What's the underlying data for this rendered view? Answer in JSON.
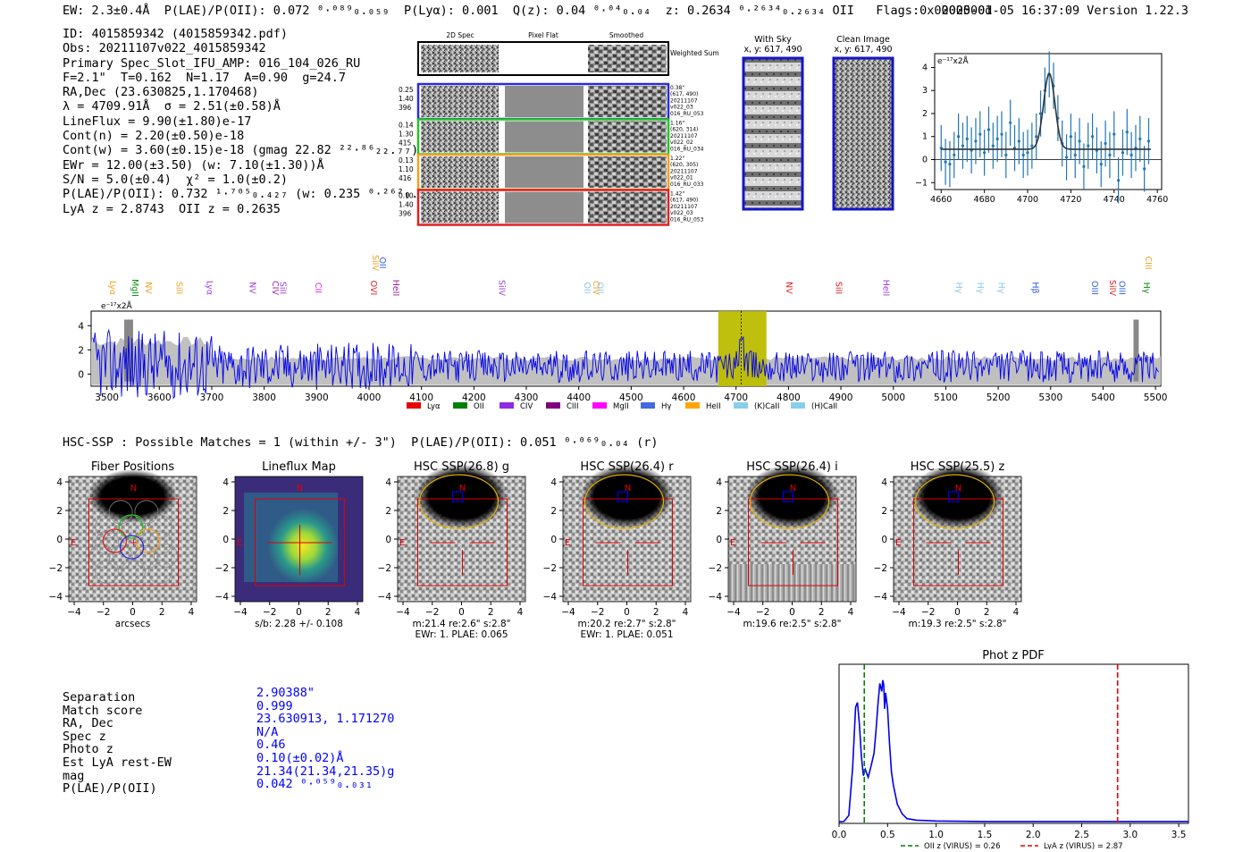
{
  "header": {
    "summary": "EW: 2.3±0.4Å  P(LAE)/P(OII): 0.072 ⁰·⁰⁸⁹₀.₀₅₉  P(Lyα): 0.001  Q(z): 0.04 ⁰·⁰⁴₀.₀₄  z: 0.2634 ⁰·²⁶³⁴₀.₂₆₃₄ OII   Flags:0x0000000d",
    "timestamp_version": "2025-01-05 16:37:09  Version 1.22.3"
  },
  "info": {
    "lines": [
      "ID: 4015859342 (4015859342.pdf)",
      "Obs: 20211107v022_4015859342",
      "Primary Spec_Slot_IFU_AMP: 016_104_026_RU",
      "F=2.1\"  T=0.162  N=1.17  A=0.90  g=24.7",
      "RA,Dec (23.630825,1.170468)",
      "λ = 4709.91Å  σ = 2.51(±0.58)Å",
      "LineFlux = 9.90(±1.80)e-17",
      "Cont(n) = 2.20(±0.50)e-18",
      "Cont(w) = 3.60(±0.15)e-18 (gmag 22.82 ²²·⁸⁶₂₂.₇₇)",
      "EWr = 12.00(±3.50) (w: 7.10(±1.30))Å",
      "S/N = 5.0(±0.4)  χ² = 1.0(±0.2)",
      "P(LAE)/P(OII): 0.732 ¹·⁷⁰⁵₀.₄₂₇ (w: 0.235 ⁰·²⁶²₀.₂₂)",
      "LyA z = 2.8743  OII z = 0.2635"
    ]
  },
  "cutouts": {
    "col_headers": [
      "2D Spec",
      "Pixel Flat",
      "Smoothed"
    ],
    "weighted_sum_label": "Weighted Sum",
    "rows": [
      {
        "left": [
          "0.25",
          "1.40",
          "396"
        ],
        "right": [
          "0.38\"",
          "(617, 490)",
          "20211107",
          "v022_03",
          "016_RU_053"
        ],
        "color": "#2b2bd6"
      },
      {
        "left": [
          "0.14",
          "1.30",
          "415"
        ],
        "right": [
          "1.16\"",
          "(620, 314)",
          "20211107",
          "v022_02",
          "016_RU_034"
        ],
        "color": "#22c322"
      },
      {
        "left": [
          "0.13",
          "1.10",
          "416"
        ],
        "right": [
          "1.22\"",
          "(620, 305)",
          "20211107",
          "v022_01",
          "016_RU_033"
        ],
        "color": "#f0a020"
      },
      {
        "left": [
          "0.10",
          "1.40",
          "396"
        ],
        "right": [
          "1.42\"",
          "(617, 490)",
          "20211107",
          "v022_03",
          "016_RU_053"
        ],
        "color": "#e02020"
      }
    ]
  },
  "sky_panels": {
    "with_sky": {
      "title": "With Sky",
      "coords": "x, y: 617, 490"
    },
    "clean": {
      "title": "Clean Image",
      "coords": "x, y: 617, 490"
    }
  },
  "zoom_plot_chart": {
    "chart_data": {
      "type": "scatter",
      "ylabel_unit": "e⁻¹⁷x2Å",
      "xlim": [
        4657,
        4762
      ],
      "ylim": [
        -1.3,
        4.6
      ],
      "xticks": [
        "4660",
        "4680",
        "4700",
        "4720",
        "4740",
        "4760"
      ],
      "yticks": [
        "−1",
        "0",
        "1",
        "2",
        "3",
        "4"
      ],
      "points": [
        [
          4660,
          0.5
        ],
        [
          4662,
          -0.1
        ],
        [
          4664,
          -0.2
        ],
        [
          4666,
          0.2
        ],
        [
          4668,
          1.0
        ],
        [
          4670,
          0.6
        ],
        [
          4672,
          0.9
        ],
        [
          4674,
          0.4
        ],
        [
          4676,
          0.8
        ],
        [
          4678,
          1.1
        ],
        [
          4680,
          0.3
        ],
        [
          4682,
          1.3
        ],
        [
          4684,
          0.6
        ],
        [
          4686,
          0.9
        ],
        [
          4688,
          1.1
        ],
        [
          4690,
          0.2
        ],
        [
          4692,
          1.6
        ],
        [
          4694,
          0.5
        ],
        [
          4696,
          0.8
        ],
        [
          4698,
          0.2
        ],
        [
          4700,
          0.3
        ],
        [
          4702,
          0.6
        ],
        [
          4704,
          1.0
        ],
        [
          4706,
          2.0
        ],
        [
          4708,
          3.0
        ],
        [
          4710,
          3.7
        ],
        [
          4712,
          3.2
        ],
        [
          4714,
          1.8
        ],
        [
          4716,
          0.7
        ],
        [
          4718,
          0.1
        ],
        [
          4720,
          1.0
        ],
        [
          4722,
          0.2
        ],
        [
          4724,
          0.8
        ],
        [
          4726,
          -0.3
        ],
        [
          4728,
          0.6
        ],
        [
          4730,
          1.0
        ],
        [
          4732,
          0.4
        ],
        [
          4734,
          -0.2
        ],
        [
          4736,
          0.7
        ],
        [
          4738,
          0.2
        ],
        [
          4740,
          1.1
        ],
        [
          4742,
          -0.9
        ],
        [
          4744,
          0.3
        ],
        [
          4746,
          1.2
        ],
        [
          4748,
          0.2
        ],
        [
          4750,
          0.5
        ],
        [
          4752,
          0.9
        ],
        [
          4754,
          -0.4
        ],
        [
          4756,
          0.8
        ]
      ],
      "errors": 1.0,
      "fit": {
        "center": 4710,
        "amp": 3.3,
        "sigma": 2.6,
        "baseline": 0.45
      }
    }
  },
  "spectrum_chart": {
    "chart_data": {
      "type": "line",
      "xlabel": "",
      "ylabel_unit": "e⁻¹⁷x2Å",
      "xlim": [
        3470,
        5510
      ],
      "ylim": [
        -1,
        5.2
      ],
      "xticks": [
        "3500",
        "3600",
        "3700",
        "3800",
        "3900",
        "4000",
        "4100",
        "4200",
        "4300",
        "4400",
        "4500",
        "4600",
        "4700",
        "4800",
        "4900",
        "5000",
        "5100",
        "5200",
        "5300",
        "5400",
        "5500"
      ],
      "yticks": [
        "0",
        "2",
        "4"
      ],
      "highlight_region": [
        4666,
        4758
      ],
      "line_center": 4710,
      "top_labels": [
        {
          "text": "Lyα",
          "x": 3510,
          "color": "#f0a020",
          "row": 2
        },
        {
          "text": "MgII",
          "x": 3553,
          "color": "#0a8a0a",
          "row": 2
        },
        {
          "text": "NV",
          "x": 3578,
          "color": "#f0a020",
          "row": 2
        },
        {
          "text": "SiII",
          "x": 3637,
          "color": "#f0a020",
          "row": 2
        },
        {
          "text": "Lyα",
          "x": 3695,
          "color": "#9a40e0",
          "row": 2
        },
        {
          "text": "NV",
          "x": 3777,
          "color": "#9a40e0",
          "row": 2
        },
        {
          "text": "CIV",
          "x": 3820,
          "color": "#a020a0",
          "row": 2
        },
        {
          "text": "SiII",
          "x": 3835,
          "color": "#9a40e0",
          "row": 2
        },
        {
          "text": "CII",
          "x": 3902,
          "color": "#e020e0",
          "row": 2
        },
        {
          "text": "SiIV",
          "x": 4011,
          "color": "#f0a020",
          "row": 1
        },
        {
          "text": "OVI",
          "x": 4008,
          "color": "#e02020",
          "row": 2
        },
        {
          "text": "OII",
          "x": 4025,
          "color": "#3060e0",
          "row": 1
        },
        {
          "text": "HeII",
          "x": 4050,
          "color": "#a020a0",
          "row": 2
        },
        {
          "text": "SiIV",
          "x": 4252,
          "color": "#9a40e0",
          "row": 2
        },
        {
          "text": "OII",
          "x": 4415,
          "color": "#88c8ee",
          "row": 2
        },
        {
          "text": "OII",
          "x": 4440,
          "color": "#88c8ee",
          "row": 2
        },
        {
          "text": "CIV",
          "x": 4432,
          "color": "#f0a020",
          "row": 2
        },
        {
          "text": "NV",
          "x": 4800,
          "color": "#e02020",
          "row": 2
        },
        {
          "text": "SiII",
          "x": 4895,
          "color": "#e02020",
          "row": 2
        },
        {
          "text": "HeII",
          "x": 4985,
          "color": "#9a40e0",
          "row": 2
        },
        {
          "text": "Hγ",
          "x": 5124,
          "color": "#88c8ee",
          "row": 2
        },
        {
          "text": "Hγ",
          "x": 5165,
          "color": "#88c8ee",
          "row": 2
        },
        {
          "text": "Hγ",
          "x": 5205,
          "color": "#88c8ee",
          "row": 2
        },
        {
          "text": "Hβ",
          "x": 5270,
          "color": "#3060e0",
          "row": 2
        },
        {
          "text": "OIII",
          "x": 5383,
          "color": "#3060e0",
          "row": 2
        },
        {
          "text": "SiIV",
          "x": 5417,
          "color": "#e02020",
          "row": 2
        },
        {
          "text": "OIII",
          "x": 5435,
          "color": "#3060e0",
          "row": 2
        },
        {
          "text": "CIII",
          "x": 5485,
          "color": "#f0a020",
          "row": 1
        },
        {
          "text": "Hγ",
          "x": 5482,
          "color": "#0a8a0a",
          "row": 2
        }
      ],
      "legend": [
        {
          "label": "Lyα",
          "color": "#e60000"
        },
        {
          "label": "OII",
          "color": "#008000"
        },
        {
          "label": "CIV",
          "color": "#8a2be2"
        },
        {
          "label": "CIII",
          "color": "#800080"
        },
        {
          "label": "MgII",
          "color": "#ff00ff"
        },
        {
          "label": "Hγ",
          "color": "#4169e1"
        },
        {
          "label": "HeII",
          "color": "#ffa500"
        },
        {
          "label": "(K)CaII",
          "color": "#87ceeb"
        },
        {
          "label": "(H)CaII",
          "color": "#87ceeb"
        }
      ]
    }
  },
  "hsc": {
    "summary_line": "HSC-SSP : Possible Matches = 1 (within +/- 3\")  P(LAE)/P(OII): 0.051 ⁰·⁰⁶⁹₀.₀₄ (r)",
    "panels": [
      {
        "title": "Fiber Positions",
        "caption1": "arcsecs",
        "caption2": ""
      },
      {
        "title": "Lineflux Map",
        "caption1": "s/b: 2.28 +/- 0.108",
        "caption2": ""
      },
      {
        "title": "HSC SSP(26.8) g",
        "caption1": "m:21.4  re:2.6\"  s:2.8\"",
        "caption2": "EWr: 1. PLAE: 0.065"
      },
      {
        "title": "HSC SSP(26.4) r",
        "caption1": "m:20.2  re:2.7\"  s:2.8\"",
        "caption2": "EWr: 1. PLAE: 0.051"
      },
      {
        "title": "HSC SSP(26.4) i",
        "caption1": "m:19.6  re:2.5\"  s:2.8\"",
        "caption2": ""
      },
      {
        "title": "HSC SSP(25.5) z",
        "caption1": "m:19.3  re:2.5\"  s:2.8\"",
        "caption2": ""
      }
    ],
    "axis_ticks": [
      "−4",
      "−2",
      "0",
      "2",
      "4"
    ],
    "north_label": "N",
    "east_label": "E"
  },
  "match": {
    "labels": [
      "Separation",
      "Match score",
      "RA, Dec",
      "Spec z",
      "Photo z",
      "Est LyA rest-EW",
      "mag",
      "P(LAE)/P(OII)"
    ],
    "values": [
      "2.90388\"",
      "0.999",
      "23.630913, 1.171270",
      "N/A",
      "0.46",
      "0.10(±0.02)Å",
      "21.34(21.34,21.35)g",
      "0.042 ⁰·⁰⁵⁹₀.₀₃₁"
    ]
  },
  "photz_chart": {
    "chart_data": {
      "type": "line",
      "title": "Phot z PDF",
      "xlim": [
        0,
        3.6
      ],
      "ylim": [
        0,
        1.0
      ],
      "xticks": [
        "0.0",
        "0.5",
        "1.0",
        "1.5",
        "2.0",
        "2.5",
        "3.0",
        "3.5"
      ],
      "series": [
        {
          "name": "pdf",
          "x": [
            0,
            0.05,
            0.1,
            0.14,
            0.17,
            0.19,
            0.21,
            0.23,
            0.25,
            0.27,
            0.3,
            0.33,
            0.36,
            0.38,
            0.4,
            0.42,
            0.44,
            0.45,
            0.46,
            0.47,
            0.48,
            0.5,
            0.52,
            0.54,
            0.56,
            0.6,
            0.65,
            0.7,
            0.8,
            1.0,
            1.5,
            2.0,
            2.5,
            3.0,
            3.6
          ],
          "values": [
            0.01,
            0.012,
            0.05,
            0.35,
            0.73,
            0.76,
            0.62,
            0.42,
            0.3,
            0.34,
            0.29,
            0.36,
            0.44,
            0.58,
            0.74,
            0.88,
            0.83,
            0.9,
            0.87,
            0.72,
            0.82,
            0.72,
            0.5,
            0.32,
            0.24,
            0.12,
            0.06,
            0.03,
            0.02,
            0.015,
            0.012,
            0.012,
            0.012,
            0.012,
            0.012
          ]
        }
      ],
      "oii_z": 0.26,
      "lya_z": 2.87,
      "legend": [
        {
          "label": "OII z (VIRUS) = 0.26",
          "color": "#008000"
        },
        {
          "label": "LyA z (VIRUS) = 2.87",
          "color": "#e60000"
        }
      ]
    }
  }
}
